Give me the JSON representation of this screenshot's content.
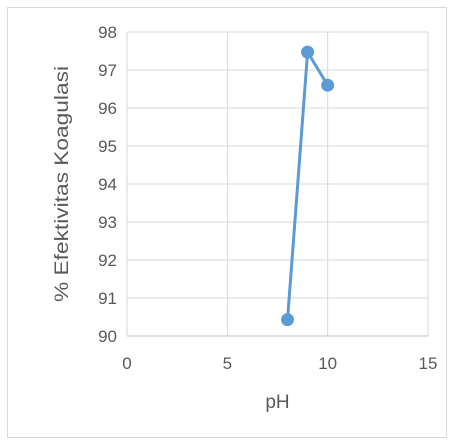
{
  "chart_data": {
    "type": "line",
    "title": "",
    "xlabel": "pH",
    "ylabel": "% Efektivitas Koagulasi",
    "xlim": [
      0,
      15
    ],
    "ylim": [
      90,
      98
    ],
    "x_ticks": [
      "0",
      "5",
      "10",
      "15"
    ],
    "y_ticks": [
      "90",
      "91",
      "92",
      "93",
      "94",
      "95",
      "96",
      "97",
      "98"
    ],
    "grid": true,
    "legend": "none",
    "series": [
      {
        "color": "#5b9bd5",
        "points": [
          {
            "x": 8,
            "y": 90.43
          },
          {
            "x": 9,
            "y": 97.47
          },
          {
            "x": 10,
            "y": 96.6
          }
        ]
      }
    ]
  }
}
